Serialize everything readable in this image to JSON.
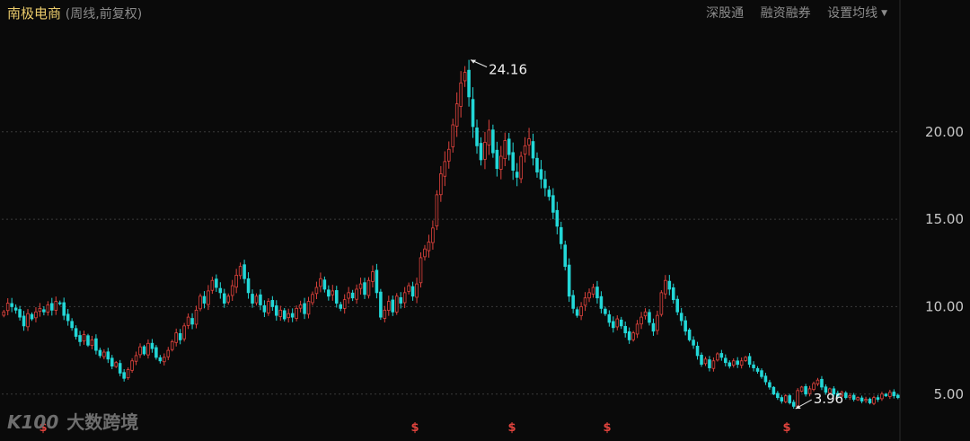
{
  "header": {
    "stock_name": "南极电商",
    "period_label": "(周线,前复权)",
    "btn_connect": "深股通",
    "btn_margin": "融资融券",
    "btn_ma": "设置均线"
  },
  "watermark": {
    "logo": "K100",
    "text": "大数跨境"
  },
  "colors": {
    "background": "#0a0a0a",
    "up": "#e0433d",
    "down": "#23d7d7",
    "grid": "#3a3a3a",
    "label": "#c8c8c8",
    "marker": "#e0433d"
  },
  "chart_data": {
    "type": "candlestick",
    "title": "南极电商",
    "ylim": [
      3.6,
      26
    ],
    "yticks": [
      5.0,
      10.0,
      15.0,
      20.0
    ],
    "ytick_labels": [
      "5.00",
      "10.00",
      "15.00",
      "20.00"
    ],
    "grid": true,
    "annotations": {
      "high": "24.16",
      "low": "3.96"
    },
    "event_markers": [
      "$",
      "$",
      "$",
      "$",
      "$"
    ],
    "series": [
      {
        "name": "close",
        "values": [
          9.7,
          10.2,
          10.0,
          9.8,
          9.4,
          8.9,
          9.6,
          9.3,
          9.7,
          9.9,
          9.7,
          10.1,
          9.8,
          10.3,
          10.2,
          9.5,
          9.2,
          8.8,
          8.3,
          8.0,
          8.4,
          7.8,
          8.1,
          7.5,
          7.2,
          7.4,
          7.0,
          6.6,
          6.8,
          6.2,
          5.9,
          6.4,
          6.9,
          7.2,
          7.7,
          7.3,
          7.9,
          7.6,
          7.1,
          6.9,
          7.1,
          7.5,
          8.0,
          8.5,
          8.1,
          8.9,
          9.4,
          9.0,
          9.8,
          10.6,
          10.2,
          10.9,
          11.5,
          11.1,
          10.8,
          10.2,
          10.6,
          11.2,
          11.8,
          12.3,
          11.6,
          10.8,
          10.2,
          10.6,
          10.1,
          9.7,
          10.3,
          10.0,
          9.5,
          9.8,
          9.3,
          9.6,
          9.4,
          9.9,
          10.1,
          9.6,
          10.3,
          10.7,
          11.1,
          11.6,
          11.0,
          10.6,
          10.9,
          10.2,
          9.9,
          10.4,
          10.8,
          10.5,
          11.0,
          11.3,
          10.7,
          11.5,
          12.0,
          10.8,
          9.4,
          9.8,
          10.3,
          9.7,
          10.6,
          10.2,
          10.8,
          11.2,
          10.6,
          11.3,
          12.8,
          13.3,
          13.7,
          14.5,
          16.4,
          17.6,
          18.3,
          19.0,
          20.4,
          21.6,
          22.8,
          23.4,
          22.0,
          20.3,
          19.2,
          18.4,
          19.4,
          20.1,
          18.8,
          17.9,
          18.6,
          19.5,
          18.7,
          17.8,
          17.4,
          18.6,
          19.2,
          19.6,
          18.5,
          17.7,
          17.3,
          16.8,
          16.3,
          15.4,
          14.6,
          13.6,
          12.3,
          10.6,
          9.9,
          9.5,
          10.0,
          10.5,
          10.8,
          11.1,
          10.5,
          9.9,
          9.6,
          9.1,
          8.8,
          9.3,
          8.9,
          8.5,
          8.1,
          8.5,
          9.0,
          9.4,
          9.7,
          9.1,
          8.6,
          9.5,
          10.8,
          11.5,
          11.0,
          10.4,
          9.7,
          9.2,
          8.6,
          8.1,
          7.8,
          7.2,
          6.7,
          7.0,
          6.5,
          6.9,
          7.3,
          7.1,
          6.8,
          6.6,
          6.9,
          6.7,
          6.9,
          7.1,
          6.7,
          6.5,
          6.3,
          6.0,
          5.7,
          5.4,
          5.0,
          4.8,
          4.6,
          4.9,
          4.5,
          4.3,
          5.2,
          5.4,
          5.0,
          5.3,
          5.6,
          5.8,
          5.4,
          5.1,
          5.3,
          5.0,
          4.9,
          5.1,
          4.8,
          4.9,
          4.7,
          4.8,
          4.6,
          4.7,
          4.5,
          4.8,
          4.7,
          5.0,
          4.9,
          5.1,
          4.9,
          4.8
        ]
      }
    ]
  }
}
